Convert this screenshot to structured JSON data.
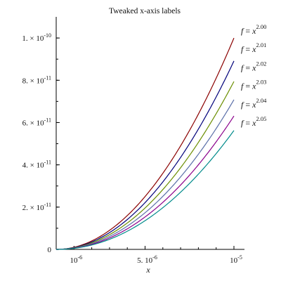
{
  "chart_data": {
    "type": "line",
    "title": "Tweaked x-axis labels",
    "xlabel": "x",
    "ylabel": "",
    "xlim": [
      0,
      1e-05
    ],
    "ylim": [
      0,
      1.1e-10
    ],
    "x_ticks": [
      {
        "value": 1e-06,
        "mant": "10",
        "exp": "-6"
      },
      {
        "value": 5e-06,
        "mant": "5. 10",
        "exp": "-6"
      },
      {
        "value": 1e-05,
        "mant": "10",
        "exp": "-5"
      }
    ],
    "y_ticks": [
      {
        "value": 0,
        "mant": "0",
        "exp": ""
      },
      {
        "value": 2e-11,
        "mant": "2. × 10",
        "exp": "-11"
      },
      {
        "value": 4e-11,
        "mant": "4. × 10",
        "exp": "-11"
      },
      {
        "value": 6e-11,
        "mant": "6. × 10",
        "exp": "-11"
      },
      {
        "value": 8e-11,
        "mant": "8. × 10",
        "exp": "-11"
      },
      {
        "value": 1e-10,
        "mant": "1. × 10",
        "exp": "-10"
      }
    ],
    "grid": false,
    "legend": "inline labels at right end of curves",
    "series": [
      {
        "name": "f = x^2.00",
        "prefix": "f",
        "eq": " = ",
        "base": "x",
        "exponent": "2.00",
        "power": 2.0,
        "color": "#8b0000"
      },
      {
        "name": "f = x^2.01",
        "prefix": "f",
        "eq": " = ",
        "base": "x",
        "exponent": "2.01",
        "power": 2.01,
        "color": "#00007a"
      },
      {
        "name": "f = x^2.02",
        "prefix": "f",
        "eq": " = ",
        "base": "x",
        "exponent": "2.02",
        "power": 2.02,
        "color": "#6b8e00"
      },
      {
        "name": "f = x^2.03",
        "prefix": "f",
        "eq": " = ",
        "base": "x",
        "exponent": "2.03",
        "power": 2.03,
        "color": "#5a6fa8"
      },
      {
        "name": "f = x^2.04",
        "prefix": "f",
        "eq": " = ",
        "base": "x",
        "exponent": "2.04",
        "power": 2.04,
        "color": "#8b008b"
      },
      {
        "name": "f = x^2.05",
        "prefix": "f",
        "eq": " = ",
        "base": "x",
        "exponent": "2.05",
        "power": 2.05,
        "color": "#008b8b"
      }
    ]
  }
}
